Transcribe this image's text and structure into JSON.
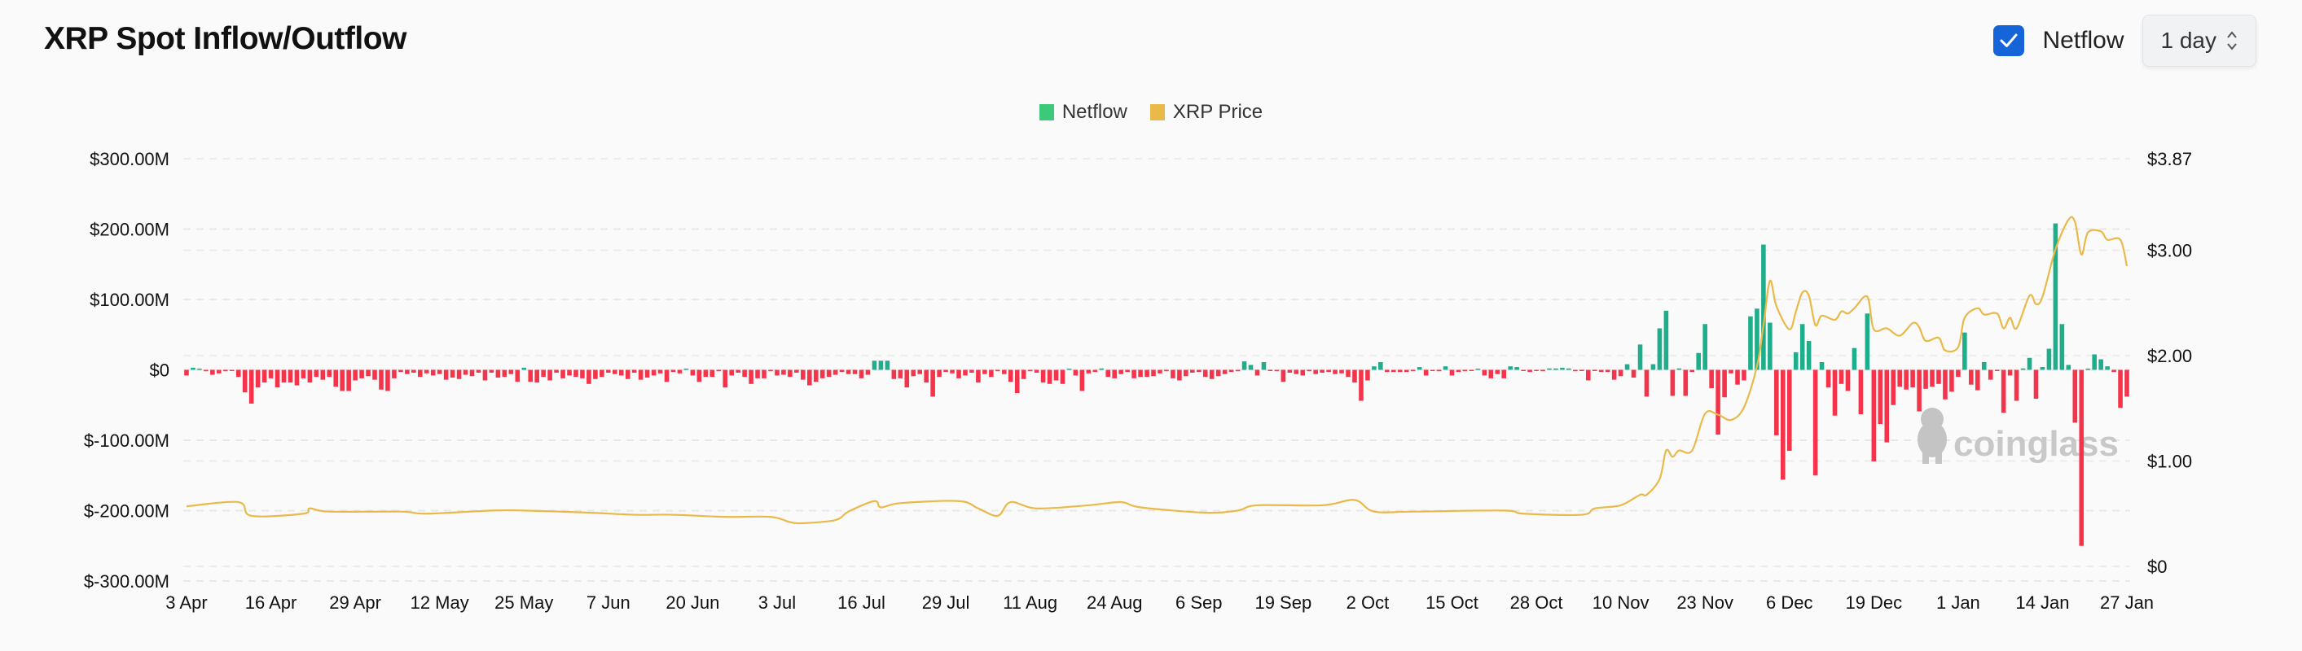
{
  "header": {
    "title": "XRP Spot Inflow/Outflow",
    "netflow_checkbox": {
      "label": "Netflow",
      "checked": true
    },
    "interval_select": {
      "value": "1 day"
    }
  },
  "colors": {
    "netflow_legend": "#3cc97a",
    "inflow": "#1fae8c",
    "outflow": "#f5334a",
    "price": "#e9b949",
    "checkbox": "#1565d8"
  },
  "watermark": "coinglass",
  "chart_data": {
    "type": "bar+line",
    "legend": {
      "placement": "top-center",
      "entries": [
        "Netflow",
        "XRP Price"
      ]
    },
    "grid": true,
    "x_tick_labels": [
      "3 Apr",
      "16 Apr",
      "29 Apr",
      "12 May",
      "25 May",
      "7 Jun",
      "20 Jun",
      "3 Jul",
      "16 Jul",
      "29 Jul",
      "11 Aug",
      "24 Aug",
      "6 Sep",
      "19 Sep",
      "2 Oct",
      "15 Oct",
      "28 Oct",
      "10 Nov",
      "23 Nov",
      "6 Dec",
      "19 Dec",
      "1 Jan",
      "14 Jan",
      "27 Jan"
    ],
    "y_left": {
      "ticks": [
        "$300.00M",
        "$200.00M",
        "$100.00M",
        "$0",
        "$-100.00M",
        "$-200.00M",
        "$-300.00M"
      ],
      "range_millions": [
        -300,
        300
      ]
    },
    "y_right": {
      "ticks": [
        "$3.87",
        "$3.00",
        "$2.00",
        "$1.00",
        "$0"
      ],
      "tick_values": [
        3.87,
        3.0,
        2.0,
        1.0,
        0
      ],
      "range": [
        0,
        3.87
      ]
    },
    "netflow": {
      "name": "Netflow",
      "unit": "USD millions",
      "first_date": "3 Apr",
      "last_date": "27 Jan",
      "daily_values": [
        -8,
        3,
        1,
        -2,
        -7,
        -5,
        -2,
        -1,
        -10,
        -32,
        -48,
        -25,
        -18,
        -12,
        -25,
        -18,
        -18,
        -22,
        -12,
        -18,
        -10,
        -14,
        -10,
        -24,
        -30,
        -30,
        -15,
        -12,
        -9,
        -14,
        -28,
        -30,
        -12,
        -3,
        -6,
        -4,
        -10,
        -5,
        -8,
        -6,
        -14,
        -11,
        -13,
        -7,
        -9,
        -4,
        -15,
        -4,
        -11,
        -10,
        -6,
        -17,
        3,
        -17,
        -18,
        -10,
        -15,
        -4,
        -12,
        -8,
        -10,
        -12,
        -20,
        -13,
        -10,
        -4,
        -6,
        -8,
        -13,
        -4,
        -14,
        -11,
        -8,
        -5,
        -17,
        -3,
        -5,
        1,
        -8,
        -17,
        -10,
        -10,
        -2,
        -25,
        -8,
        -4,
        -10,
        -20,
        -12,
        -12,
        -2,
        -8,
        -7,
        -10,
        -4,
        -14,
        -22,
        -17,
        -12,
        -10,
        -7,
        -3,
        -6,
        -6,
        -12,
        -7,
        13,
        13,
        13,
        -13,
        -12,
        -25,
        -9,
        -6,
        -18,
        -38,
        -10,
        -3,
        -5,
        -12,
        -8,
        -4,
        -18,
        -6,
        -10,
        -2,
        -6,
        -17,
        -33,
        -13,
        -2,
        -4,
        -18,
        -20,
        -15,
        -20,
        1,
        -8,
        -30,
        -5,
        -3,
        2,
        -10,
        -12,
        -6,
        -3,
        -12,
        -10,
        -10,
        -9,
        -5,
        -2,
        -12,
        -15,
        -9,
        -4,
        -3,
        -10,
        -13,
        -9,
        -6,
        -3,
        -2,
        12,
        7,
        -8,
        11,
        -1,
        -2,
        -17,
        -4,
        -6,
        -8,
        -2,
        -6,
        -4,
        -3,
        -6,
        -5,
        -10,
        -18,
        -44,
        -15,
        5,
        11,
        -3,
        -3,
        -3,
        -3,
        -2,
        4,
        -8,
        -1,
        -2,
        5,
        -8,
        -3,
        -2,
        -1,
        0,
        -8,
        -12,
        -6,
        -12,
        5,
        4,
        -1,
        -3,
        -1,
        -2,
        2,
        2,
        3,
        2,
        -2,
        -1,
        -15,
        -1,
        -3,
        -3,
        -14,
        -9,
        8,
        -11,
        36,
        -38,
        8,
        59,
        84,
        -37,
        2,
        -37,
        -3,
        24,
        65,
        -26,
        -92,
        -39,
        -5,
        -21,
        -15,
        76,
        87,
        178,
        67,
        -93,
        -156,
        -115,
        25,
        65,
        41,
        -150,
        11,
        -25,
        -65,
        -20,
        -30,
        31,
        -63,
        80,
        -130,
        -77,
        -103,
        -50,
        -24,
        -28,
        -25,
        -59,
        -27,
        -24,
        -20,
        -42,
        -31,
        -10,
        53,
        -21,
        -29,
        11,
        -14,
        -1,
        -61,
        -8,
        -44,
        2,
        17,
        -41,
        4,
        30,
        208,
        65,
        7,
        -75,
        -250,
        1,
        22,
        15,
        5,
        -3,
        -54,
        -38
      ]
    },
    "price": {
      "name": "XRP Price",
      "unit": "USD",
      "points": [
        [
          "3 Apr",
          0.57
        ],
        [
          "11 Apr",
          0.61
        ],
        [
          "13 Apr",
          0.48
        ],
        [
          "21 Apr",
          0.5
        ],
        [
          "22 Apr",
          0.55
        ],
        [
          "25 Apr",
          0.52
        ],
        [
          "6 May",
          0.52
        ],
        [
          "10 May",
          0.5
        ],
        [
          "20 May",
          0.53
        ],
        [
          "25 May",
          0.53
        ],
        [
          "4 Jun",
          0.51
        ],
        [
          "11 Jun",
          0.49
        ],
        [
          "17 Jun",
          0.49
        ],
        [
          "25 Jun",
          0.47
        ],
        [
          "2 Jul",
          0.47
        ],
        [
          "5 Jul",
          0.42
        ],
        [
          "7 Jul",
          0.41
        ],
        [
          "12 Jul",
          0.44
        ],
        [
          "14 Jul",
          0.52
        ],
        [
          "18 Jul",
          0.62
        ],
        [
          "19 Jul",
          0.56
        ],
        [
          "22 Jul",
          0.6
        ],
        [
          "31 Jul",
          0.62
        ],
        [
          "3 Aug",
          0.55
        ],
        [
          "6 Aug",
          0.48
        ],
        [
          "8 Aug",
          0.61
        ],
        [
          "12 Aug",
          0.55
        ],
        [
          "20 Aug",
          0.58
        ],
        [
          "25 Aug",
          0.61
        ],
        [
          "28 Aug",
          0.56
        ],
        [
          "7 Sep",
          0.51
        ],
        [
          "12 Sep",
          0.53
        ],
        [
          "15 Sep",
          0.58
        ],
        [
          "25 Sep",
          0.58
        ],
        [
          "30 Sep",
          0.63
        ],
        [
          "3 Oct",
          0.52
        ],
        [
          "9 Oct",
          0.52
        ],
        [
          "23 Oct",
          0.53
        ],
        [
          "26 Oct",
          0.5
        ],
        [
          "4 Nov",
          0.49
        ],
        [
          "6 Nov",
          0.55
        ],
        [
          "10 Nov",
          0.58
        ],
        [
          "13 Nov",
          0.68
        ],
        [
          "14 Nov",
          0.68
        ],
        [
          "16 Nov",
          0.83
        ],
        [
          "17 Nov",
          1.1
        ],
        [
          "18 Nov",
          1.04
        ],
        [
          "19 Nov",
          1.1
        ],
        [
          "21 Nov",
          1.1
        ],
        [
          "23 Nov",
          1.45
        ],
        [
          "25 Nov",
          1.44
        ],
        [
          "27 Nov",
          1.39
        ],
        [
          "29 Nov",
          1.51
        ],
        [
          "1 Dec",
          1.9
        ],
        [
          "2 Dec",
          2.29
        ],
        [
          "3 Dec",
          2.71
        ],
        [
          "4 Dec",
          2.47
        ],
        [
          "6 Dec",
          2.25
        ],
        [
          "7 Dec",
          2.42
        ],
        [
          "8 Dec",
          2.6
        ],
        [
          "9 Dec",
          2.57
        ],
        [
          "10 Dec",
          2.29
        ],
        [
          "11 Dec",
          2.38
        ],
        [
          "13 Dec",
          2.34
        ],
        [
          "14 Dec",
          2.42
        ],
        [
          "15 Dec",
          2.4
        ],
        [
          "16 Dec",
          2.45
        ],
        [
          "18 Dec",
          2.56
        ],
        [
          "19 Dec",
          2.25
        ],
        [
          "21 Dec",
          2.26
        ],
        [
          "23 Dec",
          2.19
        ],
        [
          "25 Dec",
          2.31
        ],
        [
          "26 Dec",
          2.27
        ],
        [
          "27 Dec",
          2.14
        ],
        [
          "29 Dec",
          2.17
        ],
        [
          "30 Dec",
          2.05
        ],
        [
          "1 Jan",
          2.08
        ],
        [
          "2 Jan",
          2.36
        ],
        [
          "4 Jan",
          2.45
        ],
        [
          "5 Jan",
          2.39
        ],
        [
          "7 Jan",
          2.4
        ],
        [
          "8 Jan",
          2.26
        ],
        [
          "9 Jan",
          2.36
        ],
        [
          "10 Jan",
          2.26
        ],
        [
          "12 Jan",
          2.57
        ],
        [
          "13 Jan",
          2.49
        ],
        [
          "14 Jan",
          2.56
        ],
        [
          "16 Jan",
          3.01
        ],
        [
          "18 Jan",
          3.29
        ],
        [
          "19 Jan",
          3.27
        ],
        [
          "20 Jan",
          2.96
        ],
        [
          "21 Jan",
          3.17
        ],
        [
          "23 Jan",
          3.18
        ],
        [
          "24 Jan",
          3.1
        ],
        [
          "26 Jan",
          3.1
        ],
        [
          "27 Jan",
          2.85
        ]
      ]
    }
  }
}
